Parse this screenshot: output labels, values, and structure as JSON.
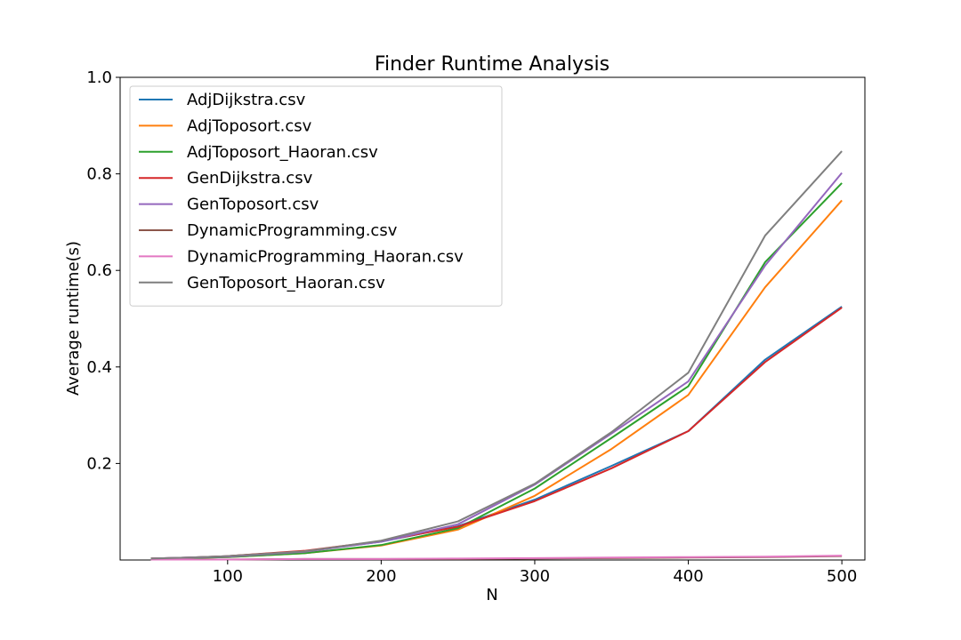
{
  "chart_data": {
    "type": "line",
    "title": "Finder Runtime Analysis",
    "xlabel": "N",
    "ylabel": "Average runtime(s)",
    "xlim": [
      30,
      515
    ],
    "ylim": [
      0,
      1.0
    ],
    "xticks": [
      100,
      200,
      300,
      400,
      500
    ],
    "xtick_labels": [
      "100",
      "200",
      "300",
      "400",
      "500"
    ],
    "yticks": [
      0.2,
      0.4,
      0.6,
      0.8,
      1.0
    ],
    "ytick_labels": [
      "0.2",
      "0.4",
      "0.6",
      "0.8",
      "1.0"
    ],
    "grid": false,
    "legend_position": "top-left",
    "x": [
      50,
      75,
      100,
      150,
      200,
      250,
      300,
      350,
      400,
      450,
      500
    ],
    "series": [
      {
        "name": "AdjDijkstra.csv",
        "color": "#1f77b4",
        "values": [
          0.003,
          0.005,
          0.008,
          0.018,
          0.038,
          0.07,
          0.125,
          0.195,
          0.267,
          0.415,
          0.525
        ]
      },
      {
        "name": "AdjToposort.csv",
        "color": "#ff7f0e",
        "values": [
          0.003,
          0.004,
          0.006,
          0.014,
          0.03,
          0.063,
          0.133,
          0.23,
          0.342,
          0.565,
          0.745
        ]
      },
      {
        "name": "AdjToposort_Haoran.csv",
        "color": "#2ca02c",
        "values": [
          0.003,
          0.004,
          0.006,
          0.014,
          0.031,
          0.066,
          0.148,
          0.253,
          0.36,
          0.617,
          0.781
        ]
      },
      {
        "name": "GenDijkstra.csv",
        "color": "#d62728",
        "values": [
          0.003,
          0.005,
          0.008,
          0.019,
          0.039,
          0.069,
          0.122,
          0.19,
          0.267,
          0.41,
          0.523
        ]
      },
      {
        "name": "GenToposort.csv",
        "color": "#9467bd",
        "values": [
          0.003,
          0.005,
          0.007,
          0.017,
          0.038,
          0.074,
          0.156,
          0.262,
          0.37,
          0.61,
          0.802
        ]
      },
      {
        "name": "DynamicProgramming.csv",
        "color": "#8c564b",
        "values": [
          0.001,
          0.001,
          0.001,
          0.002,
          0.002,
          0.002,
          0.003,
          0.004,
          0.005,
          0.006,
          0.008
        ]
      },
      {
        "name": "DynamicProgramming_Haoran.csv",
        "color": "#e377c2",
        "values": [
          0.001,
          0.001,
          0.001,
          0.002,
          0.002,
          0.003,
          0.004,
          0.005,
          0.006,
          0.007,
          0.009
        ]
      },
      {
        "name": "GenToposort_Haoran.csv",
        "color": "#7f7f7f",
        "values": [
          0.003,
          0.005,
          0.008,
          0.018,
          0.04,
          0.08,
          0.158,
          0.265,
          0.388,
          0.672,
          0.847
        ]
      }
    ]
  }
}
